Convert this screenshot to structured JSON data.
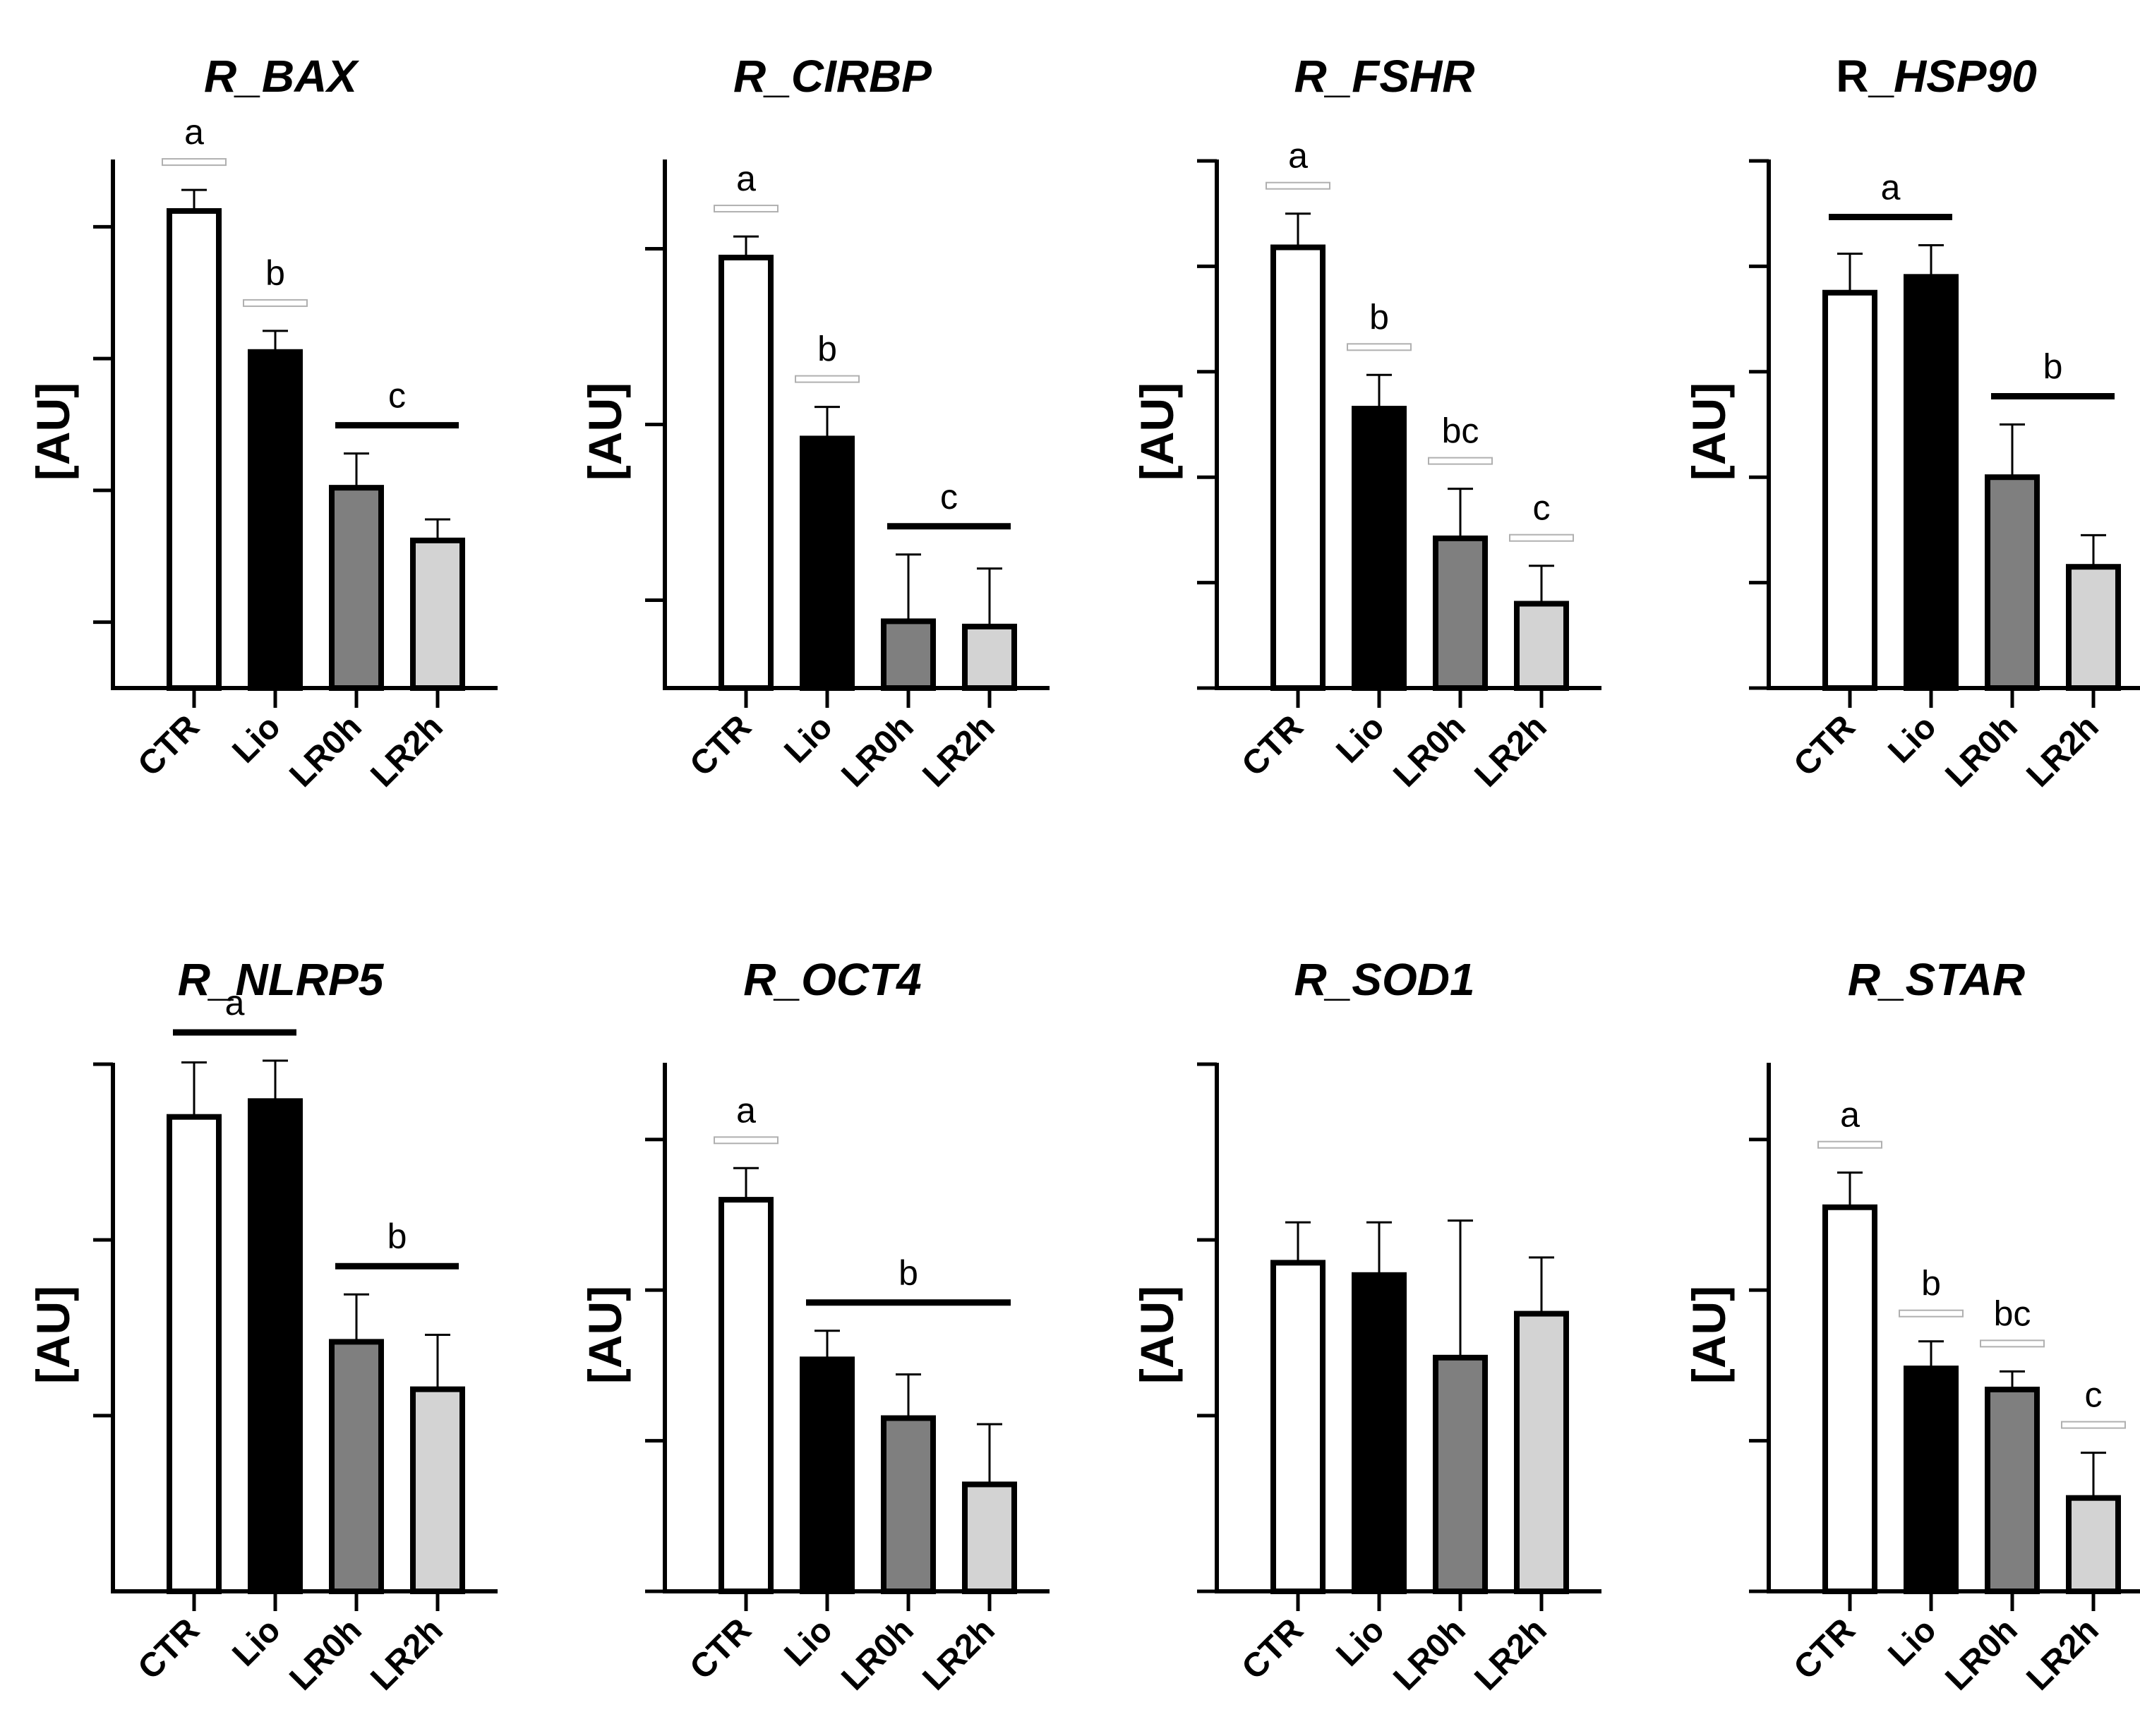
{
  "colors": {
    "CTR": "#ffffff",
    "Lio": "#000000",
    "LR0h": "#7f7f7f",
    "LR2h": "#d3d3d3",
    "axis": "#000000"
  },
  "chart_data": [
    {
      "type": "bar",
      "title": "R_BAX",
      "ylabel": "[AU]",
      "categories": [
        "CTR",
        "Lio",
        "LR0h",
        "LR2h"
      ],
      "values": [
        3.12,
        2.05,
        1.02,
        0.62
      ],
      "errors": [
        0.16,
        0.16,
        0.26,
        0.16
      ],
      "ylim": [
        -0.5,
        3.5
      ],
      "yticks": [
        0,
        1,
        2,
        3
      ],
      "significance": [
        {
          "label": "a",
          "from": 0,
          "to": 0,
          "style": "open"
        },
        {
          "label": "b",
          "from": 1,
          "to": 1,
          "style": "open"
        },
        {
          "label": "c",
          "from": 2,
          "to": 3,
          "style": "line"
        }
      ]
    },
    {
      "type": "bar",
      "title": "R_CIRBP",
      "ylabel": "[AU]",
      "categories": [
        "CTR",
        "Lio",
        "LR0h",
        "LR2h"
      ],
      "values": [
        2.45,
        1.42,
        0.38,
        0.35
      ],
      "errors": [
        0.12,
        0.18,
        0.38,
        0.33
      ],
      "ylim": [
        0,
        3.0
      ],
      "yticks": [
        0.5,
        1.5,
        2.5
      ],
      "significance": [
        {
          "label": "a",
          "from": 0,
          "to": 0,
          "style": "open"
        },
        {
          "label": "b",
          "from": 1,
          "to": 1,
          "style": "open"
        },
        {
          "label": "c",
          "from": 2,
          "to": 3,
          "style": "line"
        }
      ]
    },
    {
      "type": "bar",
      "title": "R_FSHR",
      "ylabel": "[AU]",
      "categories": [
        "CTR",
        "Lio",
        "LR0h",
        "LR2h"
      ],
      "values": [
        4.18,
        2.65,
        1.42,
        0.8
      ],
      "errors": [
        0.32,
        0.32,
        0.47,
        0.36
      ],
      "ylim": [
        0,
        5
      ],
      "yticks": [
        0,
        1,
        2,
        3,
        4,
        5
      ],
      "significance": [
        {
          "label": "a",
          "from": 0,
          "to": 0,
          "style": "open"
        },
        {
          "label": "b",
          "from": 1,
          "to": 1,
          "style": "open"
        },
        {
          "label": "bc",
          "from": 2,
          "to": 2,
          "style": "open"
        },
        {
          "label": "c",
          "from": 3,
          "to": 3,
          "style": "open"
        }
      ]
    },
    {
      "type": "bar",
      "title": "R_HSP90",
      "title_plain": "R_",
      "title_italic": "HSP90",
      "ylabel": "[AU]",
      "categories": [
        "CTR",
        "Lio",
        "LR0h",
        "LR2h"
      ],
      "values": [
        3.75,
        3.9,
        2.0,
        1.15
      ],
      "errors": [
        0.37,
        0.3,
        0.5,
        0.3
      ],
      "ylim": [
        0,
        5
      ],
      "yticks": [
        0,
        1,
        2,
        3,
        4,
        5
      ],
      "significance": [
        {
          "label": "a",
          "from": 0,
          "to": 1,
          "style": "line"
        },
        {
          "label": "b",
          "from": 2,
          "to": 3,
          "style": "line"
        }
      ]
    },
    {
      "type": "bar",
      "title": "R_NLRP5",
      "ylabel": "[AU]",
      "categories": [
        "CTR",
        "Lio",
        "LR0h",
        "LR2h"
      ],
      "values": [
        2.2,
        2.29,
        0.92,
        0.65
      ],
      "errors": [
        0.31,
        0.23,
        0.27,
        0.31
      ],
      "ylim": [
        -0.5,
        2.5
      ],
      "yticks": [
        0.5,
        1.5,
        2.5
      ],
      "significance": [
        {
          "label": "a",
          "from": 0,
          "to": 1,
          "style": "line"
        },
        {
          "label": "b",
          "from": 2,
          "to": 3,
          "style": "line"
        }
      ]
    },
    {
      "type": "bar",
      "title": "R_OCT4",
      "ylabel": "[AU]",
      "categories": [
        "CTR",
        "Lio",
        "LR0h",
        "LR2h"
      ],
      "values": [
        2.6,
        1.54,
        1.15,
        0.71
      ],
      "errors": [
        0.21,
        0.19,
        0.29,
        0.4
      ],
      "ylim": [
        0,
        3.5
      ],
      "yticks": [
        0,
        1,
        2,
        3
      ],
      "significance": [
        {
          "label": "a",
          "from": 0,
          "to": 0,
          "style": "open"
        },
        {
          "label": "b",
          "from": 1,
          "to": 3,
          "style": "line"
        }
      ]
    },
    {
      "type": "bar",
      "title": "R_SOD1",
      "ylabel": "[AU]",
      "categories": [
        "CTR",
        "Lio",
        "LR0h",
        "LR2h"
      ],
      "values": [
        1.87,
        1.8,
        1.33,
        1.58
      ],
      "errors": [
        0.23,
        0.3,
        0.78,
        0.32
      ],
      "ylim": [
        0,
        3.0
      ],
      "yticks": [
        0,
        1,
        2,
        3
      ],
      "significance": []
    },
    {
      "type": "bar",
      "title": "R_STAR",
      "ylabel": "[AU]",
      "categories": [
        "CTR",
        "Lio",
        "LR0h",
        "LR2h"
      ],
      "values": [
        2.55,
        1.48,
        1.34,
        0.62
      ],
      "errors": [
        0.23,
        0.18,
        0.12,
        0.3
      ],
      "ylim": [
        0,
        3.5
      ],
      "yticks": [
        0,
        1,
        2,
        3
      ],
      "significance": [
        {
          "label": "a",
          "from": 0,
          "to": 0,
          "style": "open"
        },
        {
          "label": "b",
          "from": 1,
          "to": 1,
          "style": "open"
        },
        {
          "label": "bc",
          "from": 2,
          "to": 2,
          "style": "open"
        },
        {
          "label": "c",
          "from": 3,
          "to": 3,
          "style": "open"
        }
      ]
    }
  ]
}
